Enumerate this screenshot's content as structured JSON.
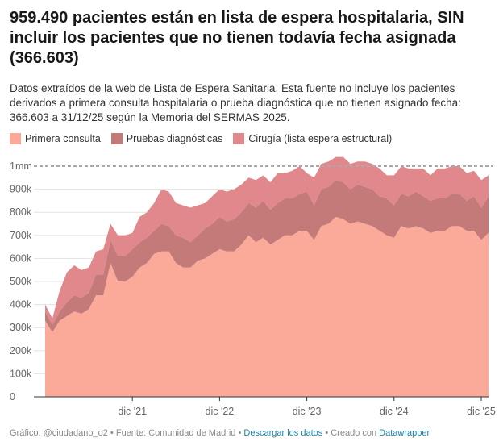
{
  "title": "959.490 pacientes están en lista de espera hospitalaria, SIN incluir los pacientes que no tienen todavía fecha asignada (366.603)",
  "description": "Datos extraídos de la web de Lista de Espera Sanitaria. Esta fuente no incluye los pacientes derivados a primera consulta hospitalaria o prueba diagnóstica que no tienen asignado fecha: 366.603 a 31/12/25 según la Memoria del SERMAS 2025.",
  "footer": {
    "grafico": "Gráfico: @ciudadano_o2",
    "fuente": "Fuente: Comunidad de Madrid",
    "descargar": "Descargar los datos",
    "creado": "Creado con",
    "datawrapper": "Datawrapper",
    "sep": "•"
  },
  "chart_data": {
    "type": "area",
    "stacked": true,
    "xlabel": "",
    "ylabel": "",
    "ylim": [
      0,
      1000000
    ],
    "y_ticks": [
      {
        "value": 0,
        "label": "0"
      },
      {
        "value": 100000,
        "label": "100k"
      },
      {
        "value": 200000,
        "label": "200k"
      },
      {
        "value": 300000,
        "label": "300k"
      },
      {
        "value": 400000,
        "label": "400k"
      },
      {
        "value": 500000,
        "label": "500k"
      },
      {
        "value": 600000,
        "label": "600k"
      },
      {
        "value": 700000,
        "label": "700k"
      },
      {
        "value": 800000,
        "label": "800k"
      },
      {
        "value": 900000,
        "label": "900k"
      },
      {
        "value": 1000000,
        "label": "1mm"
      }
    ],
    "x_ticks": [
      {
        "x": "2021-12",
        "label": "dic '21"
      },
      {
        "x": "2022-12",
        "label": "dic '22"
      },
      {
        "x": "2023-12",
        "label": "dic '23"
      },
      {
        "x": "2024-12",
        "label": "dic '24"
      },
      {
        "x": "2025-12",
        "label": "dic '25"
      }
    ],
    "reference_line": {
      "value": 1000000,
      "style": "dashed"
    },
    "grid": true,
    "legend_position": "top-left",
    "x": [
      "2020-12",
      "2021-01",
      "2021-02",
      "2021-03",
      "2021-04",
      "2021-05",
      "2021-06",
      "2021-07",
      "2021-08",
      "2021-09",
      "2021-10",
      "2021-11",
      "2021-12",
      "2022-01",
      "2022-02",
      "2022-03",
      "2022-04",
      "2022-05",
      "2022-06",
      "2022-07",
      "2022-08",
      "2022-09",
      "2022-10",
      "2022-11",
      "2022-12",
      "2023-01",
      "2023-02",
      "2023-03",
      "2023-04",
      "2023-05",
      "2023-06",
      "2023-07",
      "2023-08",
      "2023-09",
      "2023-10",
      "2023-11",
      "2023-12",
      "2024-01",
      "2024-02",
      "2024-03",
      "2024-04",
      "2024-05",
      "2024-06",
      "2024-07",
      "2024-08",
      "2024-09",
      "2024-10",
      "2024-11",
      "2024-12",
      "2025-01",
      "2025-02",
      "2025-03",
      "2025-04",
      "2025-05",
      "2025-06",
      "2025-07",
      "2025-08",
      "2025-09",
      "2025-10",
      "2025-11",
      "2025-12",
      "2026-01"
    ],
    "series": [
      {
        "name": "Primera consulta",
        "color": "#fbaa99",
        "values": [
          330000,
          280000,
          330000,
          350000,
          370000,
          360000,
          380000,
          440000,
          440000,
          580000,
          500000,
          500000,
          520000,
          560000,
          580000,
          620000,
          630000,
          630000,
          580000,
          560000,
          560000,
          590000,
          600000,
          620000,
          640000,
          630000,
          630000,
          660000,
          700000,
          670000,
          690000,
          660000,
          680000,
          700000,
          700000,
          720000,
          720000,
          680000,
          740000,
          750000,
          780000,
          770000,
          750000,
          760000,
          750000,
          740000,
          720000,
          700000,
          690000,
          740000,
          730000,
          740000,
          730000,
          710000,
          720000,
          720000,
          740000,
          740000,
          720000,
          720000,
          680000,
          710000
        ]
      },
      {
        "name": "Pruebas diagnósticas",
        "color": "#c47a79",
        "values": [
          40000,
          30000,
          40000,
          60000,
          70000,
          70000,
          70000,
          90000,
          90000,
          100000,
          110000,
          110000,
          120000,
          110000,
          110000,
          100000,
          120000,
          110000,
          120000,
          130000,
          110000,
          110000,
          130000,
          130000,
          140000,
          130000,
          140000,
          140000,
          140000,
          150000,
          160000,
          150000,
          160000,
          160000,
          160000,
          160000,
          170000,
          150000,
          160000,
          160000,
          160000,
          160000,
          150000,
          160000,
          160000,
          160000,
          150000,
          160000,
          140000,
          140000,
          140000,
          150000,
          140000,
          140000,
          140000,
          140000,
          140000,
          140000,
          130000,
          150000,
          140000,
          160000
        ]
      },
      {
        "name": "Cirugía (lista espera estructural)",
        "color": "#e0888c",
        "values": [
          30000,
          30000,
          90000,
          130000,
          130000,
          120000,
          110000,
          100000,
          110000,
          70000,
          90000,
          90000,
          70000,
          110000,
          110000,
          120000,
          150000,
          150000,
          140000,
          140000,
          150000,
          130000,
          110000,
          120000,
          120000,
          130000,
          130000,
          120000,
          110000,
          120000,
          110000,
          120000,
          130000,
          110000,
          120000,
          120000,
          80000,
          120000,
          110000,
          110000,
          100000,
          110000,
          110000,
          100000,
          110000,
          110000,
          120000,
          100000,
          130000,
          120000,
          120000,
          100000,
          120000,
          110000,
          130000,
          130000,
          120000,
          120000,
          120000,
          110000,
          120000,
          90000
        ]
      }
    ]
  }
}
